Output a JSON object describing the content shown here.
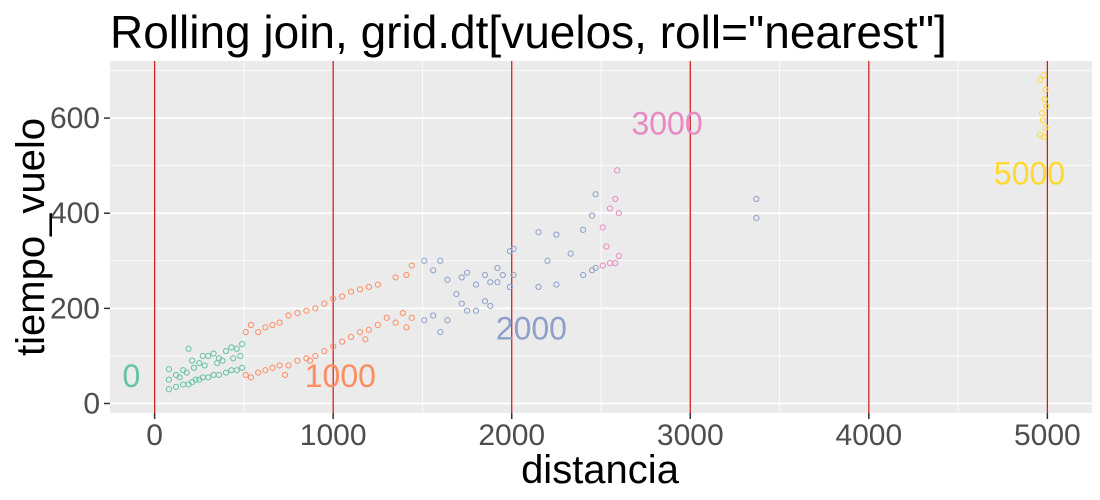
{
  "chart_data": {
    "type": "scatter",
    "title": "Rolling join, grid.dt[vuelos, roll=\"nearest\"]",
    "xlabel": "distancia",
    "ylabel": "tiempo_vuelo",
    "xlim": [
      -250,
      5250
    ],
    "ylim": [
      -20,
      720
    ],
    "x_ticks": [
      0,
      1000,
      2000,
      3000,
      4000,
      5000
    ],
    "x_tick_labels": [
      "0",
      "1000",
      "2000",
      "3000",
      "4000",
      "5000"
    ],
    "y_ticks": [
      0,
      200,
      400,
      600
    ],
    "y_tick_labels": [
      "0",
      "200",
      "400",
      "600"
    ],
    "grid": true,
    "background": "#ebebeb",
    "grid_color": "#ffffff",
    "vlines": {
      "x": [
        0,
        1000,
        2000,
        3000,
        4000,
        5000
      ],
      "color": "#cc1f1f"
    },
    "annotations": [
      {
        "label": "0",
        "x": -130,
        "y": 35,
        "color": "#66c2a5"
      },
      {
        "label": "1000",
        "x": 1040,
        "y": 35,
        "color": "#fc8d62"
      },
      {
        "label": "2000",
        "x": 2110,
        "y": 135,
        "color": "#8da0cb"
      },
      {
        "label": "3000",
        "x": 2870,
        "y": 565,
        "color": "#e78ac3"
      },
      {
        "label": "5000",
        "x": 4900,
        "y": 460,
        "color": "#ffd92f"
      }
    ],
    "series": [
      {
        "group": "0",
        "color": "#66c2a5",
        "points": [
          [
            80,
            30
          ],
          [
            80,
            50
          ],
          [
            80,
            72
          ],
          [
            120,
            35
          ],
          [
            120,
            60
          ],
          [
            160,
            40
          ],
          [
            160,
            70
          ],
          [
            190,
            40
          ],
          [
            190,
            115
          ],
          [
            210,
            45
          ],
          [
            210,
            90
          ],
          [
            230,
            50
          ],
          [
            250,
            50
          ],
          [
            250,
            85
          ],
          [
            270,
            55
          ],
          [
            270,
            100
          ],
          [
            300,
            55
          ],
          [
            300,
            100
          ],
          [
            330,
            60
          ],
          [
            330,
            105
          ],
          [
            360,
            60
          ],
          [
            360,
            95
          ],
          [
            400,
            65
          ],
          [
            400,
            110
          ],
          [
            430,
            70
          ],
          [
            430,
            118
          ],
          [
            460,
            70
          ],
          [
            460,
            115
          ],
          [
            490,
            75
          ],
          [
            490,
            125
          ],
          [
            140,
            55
          ],
          [
            180,
            65
          ],
          [
            220,
            75
          ],
          [
            280,
            80
          ],
          [
            350,
            85
          ],
          [
            380,
            90
          ],
          [
            440,
            95
          ],
          [
            480,
            100
          ]
        ]
      },
      {
        "group": "1000",
        "color": "#fc8d62",
        "points": [
          [
            510,
            60
          ],
          [
            510,
            150
          ],
          [
            540,
            55
          ],
          [
            540,
            165
          ],
          [
            580,
            65
          ],
          [
            580,
            150
          ],
          [
            620,
            70
          ],
          [
            620,
            160
          ],
          [
            660,
            75
          ],
          [
            660,
            165
          ],
          [
            700,
            80
          ],
          [
            700,
            170
          ],
          [
            750,
            80
          ],
          [
            750,
            185
          ],
          [
            800,
            90
          ],
          [
            800,
            190
          ],
          [
            850,
            95
          ],
          [
            850,
            195
          ],
          [
            900,
            100
          ],
          [
            900,
            200
          ],
          [
            950,
            110
          ],
          [
            950,
            210
          ],
          [
            1000,
            120
          ],
          [
            1000,
            220
          ],
          [
            1050,
            130
          ],
          [
            1050,
            225
          ],
          [
            1100,
            140
          ],
          [
            1100,
            235
          ],
          [
            1150,
            150
          ],
          [
            1150,
            240
          ],
          [
            1200,
            155
          ],
          [
            1200,
            245
          ],
          [
            1250,
            165
          ],
          [
            1250,
            250
          ],
          [
            1350,
            170
          ],
          [
            1350,
            265
          ],
          [
            1410,
            160
          ],
          [
            1410,
            270
          ],
          [
            1440,
            180
          ],
          [
            1440,
            290
          ],
          [
            730,
            60
          ],
          [
            870,
            90
          ],
          [
            1180,
            135
          ],
          [
            1300,
            180
          ],
          [
            1390,
            190
          ]
        ]
      },
      {
        "group": "2000",
        "color": "#8da0cb",
        "points": [
          [
            1510,
            175
          ],
          [
            1510,
            300
          ],
          [
            1560,
            185
          ],
          [
            1560,
            280
          ],
          [
            1600,
            150
          ],
          [
            1600,
            300
          ],
          [
            1640,
            175
          ],
          [
            1640,
            260
          ],
          [
            1720,
            210
          ],
          [
            1720,
            265
          ],
          [
            1750,
            195
          ],
          [
            1750,
            275
          ],
          [
            1800,
            195
          ],
          [
            1800,
            250
          ],
          [
            1850,
            215
          ],
          [
            1850,
            270
          ],
          [
            1880,
            205
          ],
          [
            1880,
            255
          ],
          [
            1920,
            255
          ],
          [
            1920,
            285
          ],
          [
            1990,
            245
          ],
          [
            1990,
            320
          ],
          [
            2010,
            270
          ],
          [
            2010,
            325
          ],
          [
            2150,
            245
          ],
          [
            2150,
            360
          ],
          [
            2250,
            250
          ],
          [
            2250,
            355
          ],
          [
            2400,
            270
          ],
          [
            2400,
            365
          ],
          [
            2450,
            280
          ],
          [
            2450,
            395
          ],
          [
            2470,
            285
          ],
          [
            2470,
            440
          ],
          [
            3370,
            390
          ],
          [
            3370,
            430
          ],
          [
            2330,
            315
          ],
          [
            2200,
            300
          ],
          [
            1690,
            230
          ],
          [
            1950,
            270
          ]
        ]
      },
      {
        "group": "3000",
        "color": "#e78ac3",
        "points": [
          [
            2510,
            290
          ],
          [
            2510,
            370
          ],
          [
            2550,
            295
          ],
          [
            2550,
            410
          ],
          [
            2580,
            295
          ],
          [
            2580,
            430
          ],
          [
            2600,
            310
          ],
          [
            2600,
            400
          ],
          [
            2590,
            490
          ],
          [
            2530,
            330
          ]
        ]
      },
      {
        "group": "5000",
        "color": "#ffd92f",
        "points": [
          [
            4960,
            565
          ],
          [
            4960,
            680
          ],
          [
            4980,
            560
          ],
          [
            4980,
            690
          ],
          [
            4990,
            580
          ],
          [
            4990,
            660
          ],
          [
            4970,
            610
          ],
          [
            4985,
            640
          ],
          [
            4975,
            595
          ],
          [
            4995,
            625
          ]
        ]
      }
    ]
  }
}
